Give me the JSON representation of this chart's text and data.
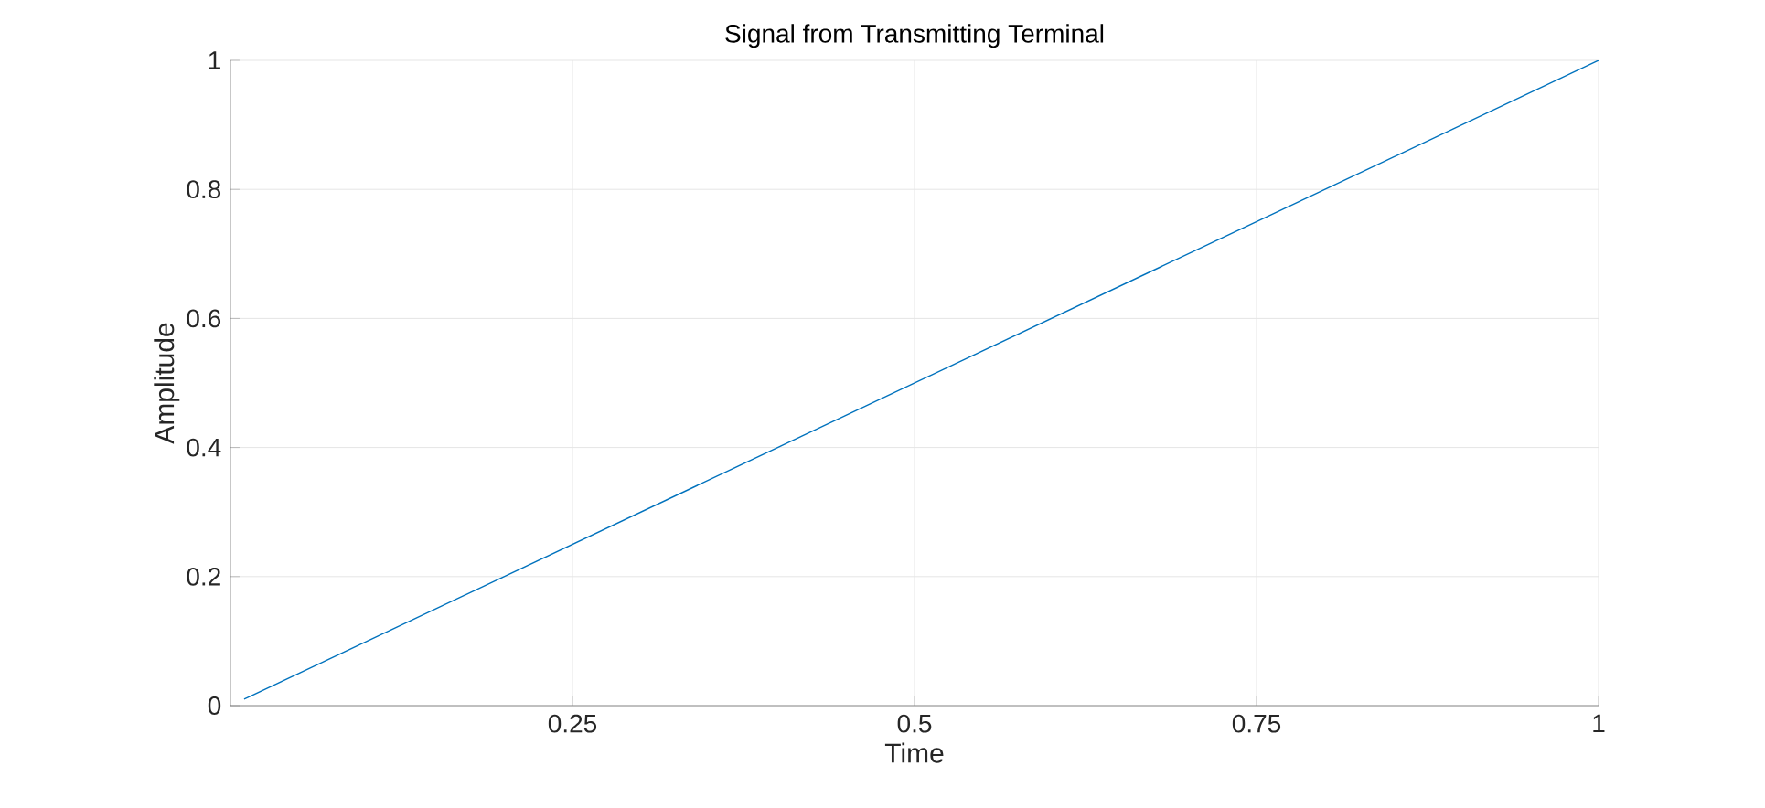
{
  "chart_data": {
    "type": "line",
    "title": "Signal from Transmitting Terminal",
    "xlabel": "Time",
    "ylabel": "Amplitude",
    "x": [
      0.01,
      1
    ],
    "values": [
      0.01,
      1
    ],
    "color": "#0072bd",
    "xlim": [
      0,
      1
    ],
    "ylim": [
      0,
      1
    ],
    "xticks": [
      0.25,
      0.5,
      0.75,
      1
    ],
    "yticks": [
      0,
      0.2,
      0.4,
      0.6,
      0.8,
      1
    ],
    "grid": true,
    "marker": "none",
    "line_style": "solid"
  }
}
